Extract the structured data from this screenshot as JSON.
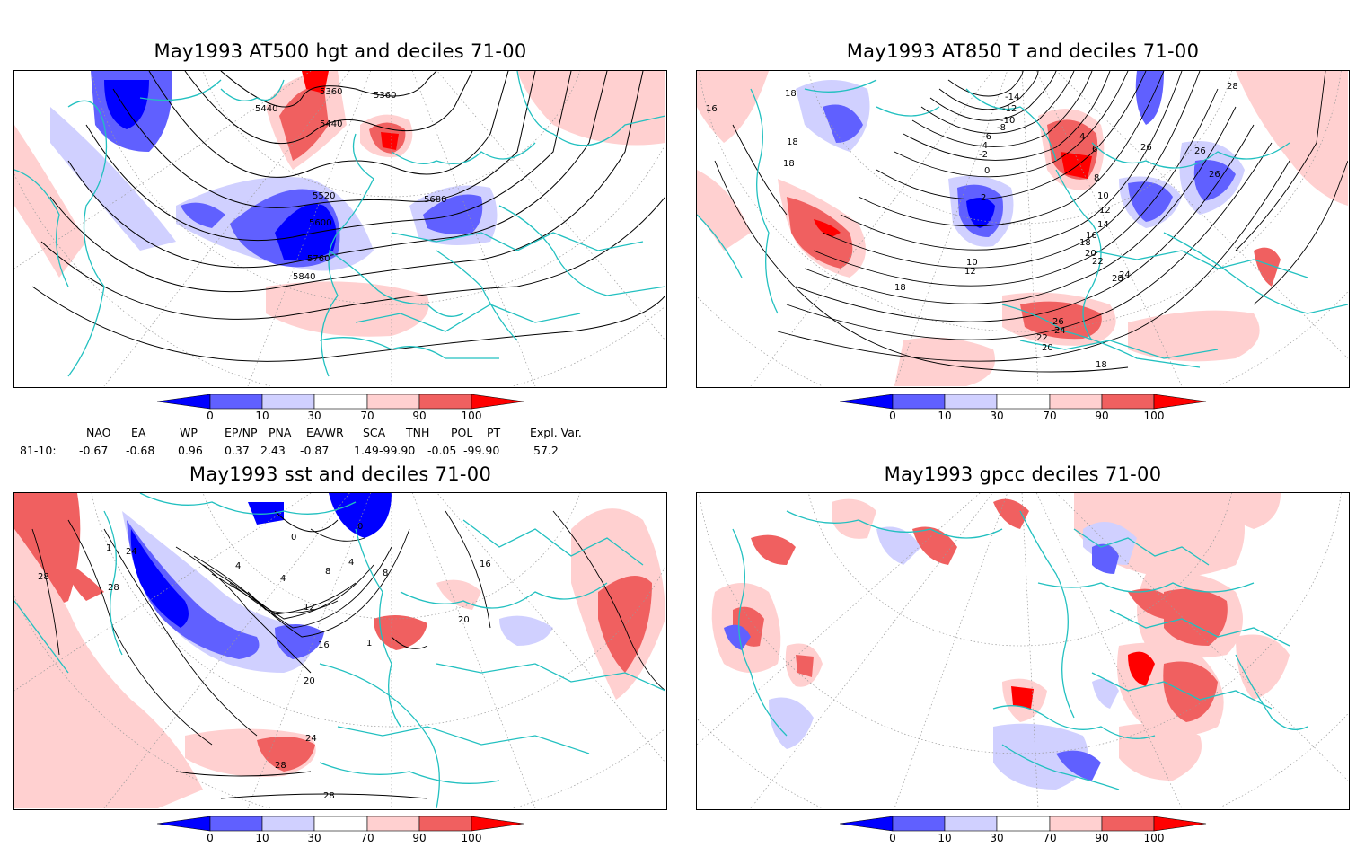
{
  "panels": [
    {
      "title": "May1993 AT500 hgt and deciles 71-00",
      "contour_labels": [
        "5360",
        "5360",
        "5440",
        "5440",
        "5520",
        "5600",
        "5680",
        "5760",
        "5840"
      ]
    },
    {
      "title": "May1993 AT850 T and deciles 71-00",
      "contour_labels": [
        "-14",
        "-12",
        "-10",
        "-8",
        "-6",
        "-4",
        "-2",
        "0",
        "2",
        "4",
        "6",
        "8",
        "10",
        "12",
        "14",
        "16",
        "18",
        "20",
        "22",
        "24",
        "26",
        "28",
        "16",
        "18",
        "18",
        "26",
        "26",
        "18",
        "18",
        "20",
        "22",
        "24",
        "26",
        "28",
        "18",
        "12",
        "10"
      ]
    },
    {
      "title": "May1993 sst and deciles 71-00",
      "contour_labels": [
        "28",
        "28",
        "24",
        "4",
        "0",
        "0",
        "4",
        "8",
        "12",
        "16",
        "20",
        "24",
        "28",
        "28",
        "16",
        "20",
        "8",
        "1",
        "1",
        "4"
      ]
    },
    {
      "title": "May1993 gpcc deciles 71-00",
      "contour_labels": []
    }
  ],
  "colorbar": {
    "labels": [
      "0",
      "10",
      "30",
      "70",
      "90",
      "100"
    ],
    "colors": [
      "#0000ff",
      "#6060ff",
      "#d0d0ff",
      "#ffffff",
      "#ffd0d0",
      "#f06060",
      "#ff0000"
    ]
  },
  "teleconnections": {
    "headers": [
      "NAO",
      "EA",
      "WP",
      "EP/NP",
      "PNA",
      "EA/WR",
      "SCA",
      "TNH",
      "POL",
      "PT",
      "Expl. Var."
    ],
    "row_label": "81-10:",
    "values": [
      "-0.67",
      "-0.68",
      "0.96",
      "0.37",
      "2.43",
      "-0.87",
      "1.49",
      "-99.90",
      "-0.05",
      "-99.90",
      "57.2"
    ]
  },
  "colors": {
    "coast": "#22c0c0",
    "grid": "#9a9a9a",
    "contour": "#000000"
  }
}
